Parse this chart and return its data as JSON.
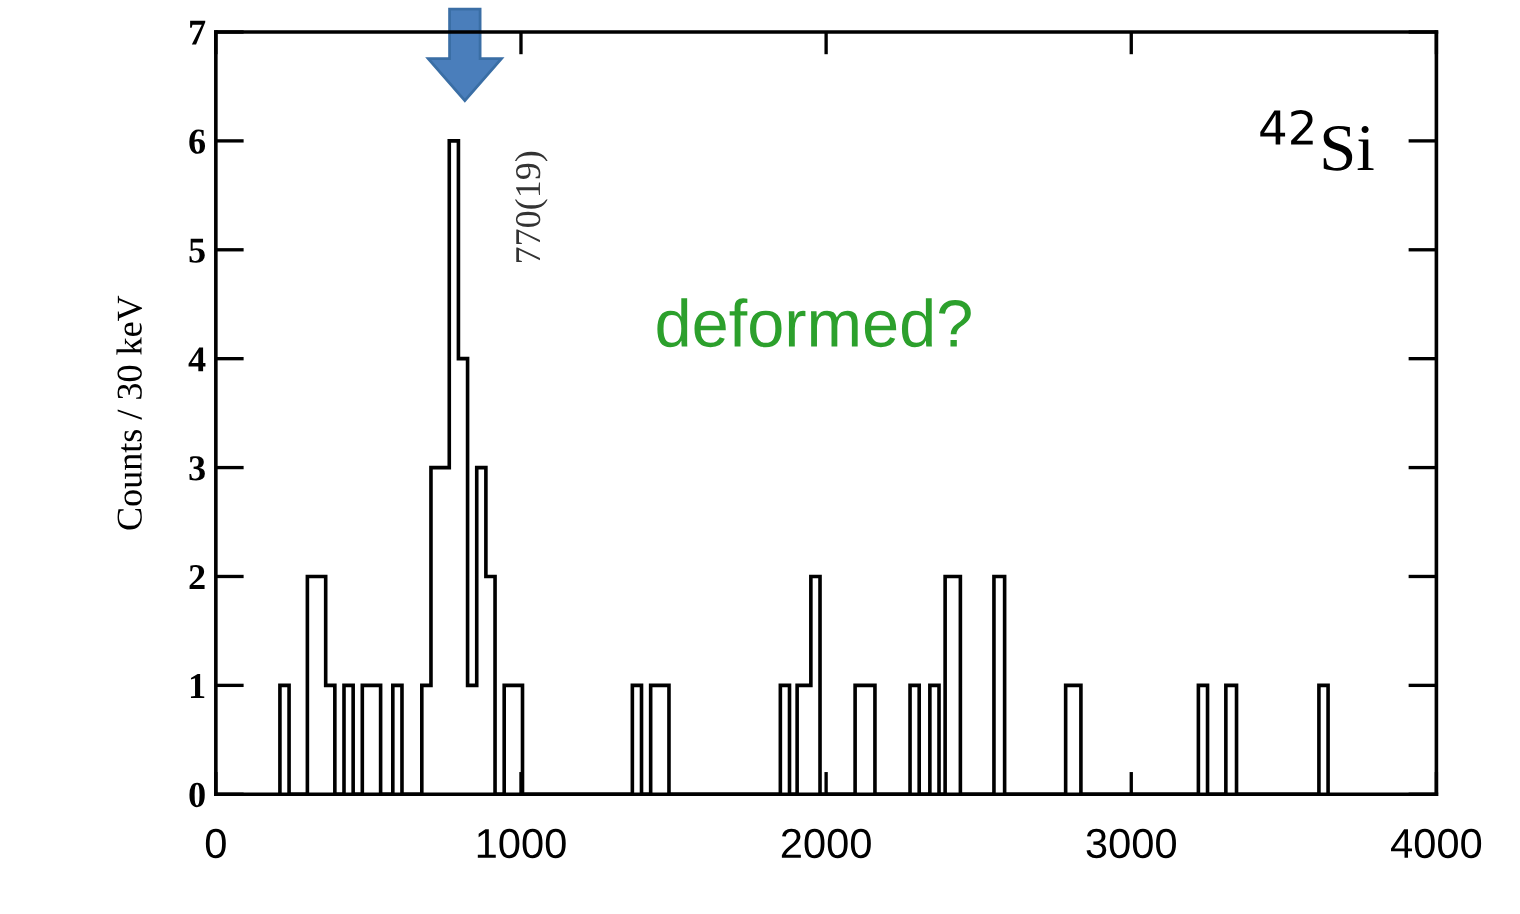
{
  "chart_data": {
    "type": "histogram",
    "ylabel": "Counts / 30 keV",
    "bins": [
      210,
      240,
      300,
      360,
      390,
      420,
      450,
      480,
      540,
      580,
      610,
      675,
      705,
      765,
      795,
      825,
      855,
      885,
      915,
      945,
      1005,
      1365,
      1395,
      1425,
      1485,
      1850,
      1880,
      1905,
      1950,
      1980,
      2095,
      2160,
      2275,
      2305,
      2340,
      2370,
      2390,
      2440,
      2550,
      2585,
      2785,
      2835,
      3220,
      3250,
      3310,
      3345,
      3615,
      3645
    ],
    "values": [
      1,
      0,
      2,
      1,
      0,
      1,
      0,
      1,
      0,
      1,
      0,
      1,
      3,
      6,
      4,
      1,
      3,
      2,
      0,
      1,
      0,
      1,
      0,
      1,
      0,
      1,
      0,
      1,
      2,
      0,
      1,
      0,
      1,
      0,
      1,
      0,
      2,
      0,
      2,
      0,
      1,
      0,
      1,
      0,
      1,
      0,
      1
    ],
    "color": "#000000",
    "xlim": [
      0,
      4000
    ],
    "xticks": [
      0,
      1000,
      2000,
      3000,
      4000
    ],
    "ylim": [
      0,
      7
    ],
    "yticks": [
      0,
      1,
      2,
      3,
      4,
      5,
      6,
      7
    ],
    "grid": false,
    "legend": false,
    "annotations": [
      "770(19)",
      "$^{42}$Si",
      "deformed?"
    ]
  }
}
